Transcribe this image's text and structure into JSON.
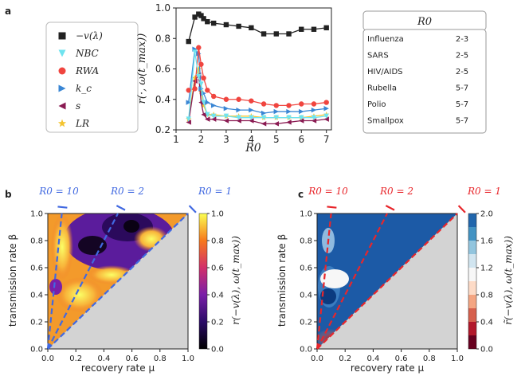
{
  "panels": {
    "a": {
      "label": "a"
    },
    "b": {
      "label": "b"
    },
    "c": {
      "label": "c"
    }
  },
  "legend": {
    "items": [
      {
        "name": "−v(λ)",
        "marker": "square",
        "color": "#222222"
      },
      {
        "name": "NBC",
        "marker": "triangle-down",
        "color": "#6fe3ef"
      },
      {
        "name": "RWA",
        "marker": "circle",
        "color": "#f0453f"
      },
      {
        "name": "k_c",
        "marker": "triangle-right",
        "color": "#3a86d4"
      },
      {
        "name": "s",
        "marker": "triangle-left",
        "color": "#8a1a52"
      },
      {
        "name": "LR",
        "marker": "star",
        "color": "#f4c430"
      }
    ]
  },
  "r0_table": {
    "header": "R0",
    "rows": [
      {
        "disease": "Influenza",
        "range": "2-3"
      },
      {
        "disease": "SARS",
        "range": "2-5"
      },
      {
        "disease": "HIV/AIDS",
        "range": "2-5"
      },
      {
        "disease": "Rubella",
        "range": "5-7"
      },
      {
        "disease": "Polio",
        "range": "5-7"
      },
      {
        "disease": "Smallpox",
        "range": "5-7"
      }
    ]
  },
  "chart_data": [
    {
      "type": "line",
      "title": "",
      "xlabel": "R0",
      "ylabel": "r(·, ω(t_max))",
      "xlim": [
        1,
        7.2
      ],
      "ylim": [
        0.2,
        1.0
      ],
      "xticks": [
        "1",
        "2",
        "3",
        "4",
        "5",
        "6",
        "7"
      ],
      "yticks": [
        "0.2",
        "0.4",
        "0.6",
        "0.8",
        "1.0"
      ],
      "x": [
        1.5,
        1.75,
        1.9,
        2.0,
        2.1,
        2.25,
        2.5,
        3.0,
        3.5,
        4.0,
        4.5,
        5.0,
        5.5,
        6.0,
        6.5,
        7.0
      ],
      "series": [
        {
          "name": "−v(λ)",
          "color": "#222222",
          "marker": "square",
          "values": [
            0.78,
            0.94,
            0.96,
            0.95,
            0.93,
            0.91,
            0.9,
            0.89,
            0.88,
            0.87,
            0.83,
            0.83,
            0.83,
            0.86,
            0.86,
            0.87
          ]
        },
        {
          "name": "NBC",
          "color": "#6fe3ef",
          "marker": "triangle-down",
          "values": [
            0.27,
            0.71,
            0.55,
            0.5,
            0.38,
            0.3,
            0.29,
            0.29,
            0.28,
            0.28,
            0.28,
            0.28,
            0.28,
            0.28,
            0.28,
            0.29
          ]
        },
        {
          "name": "RWA",
          "color": "#f0453f",
          "marker": "circle",
          "values": [
            0.46,
            0.47,
            0.74,
            0.63,
            0.54,
            0.46,
            0.42,
            0.4,
            0.4,
            0.39,
            0.37,
            0.36,
            0.36,
            0.37,
            0.37,
            0.38
          ]
        },
        {
          "name": "k_c",
          "color": "#3a86d4",
          "marker": "triangle-right",
          "values": [
            0.38,
            0.73,
            0.7,
            0.47,
            0.44,
            0.38,
            0.36,
            0.34,
            0.33,
            0.33,
            0.31,
            0.32,
            0.32,
            0.32,
            0.33,
            0.34
          ]
        },
        {
          "name": "s",
          "color": "#8a1a52",
          "marker": "triangle-left",
          "values": [
            0.25,
            0.52,
            0.56,
            0.38,
            0.3,
            0.27,
            0.27,
            0.26,
            0.26,
            0.26,
            0.24,
            0.24,
            0.25,
            0.26,
            0.26,
            0.27
          ]
        },
        {
          "name": "LR",
          "color": "#f4c430",
          "marker": "star",
          "values": [
            0.27,
            0.54,
            0.6,
            0.45,
            0.36,
            0.3,
            0.3,
            0.29,
            0.29,
            0.29,
            0.28,
            0.28,
            0.28,
            0.28,
            0.29,
            0.3
          ]
        }
      ]
    },
    {
      "type": "heatmap",
      "title": "",
      "xlabel": "recovery rate μ",
      "ylabel": "transmission rate β",
      "xlim": [
        0,
        1
      ],
      "ylim": [
        0,
        1
      ],
      "xticks": [
        "0.0",
        "0.2",
        "0.4",
        "0.6",
        "0.8",
        "1.0"
      ],
      "yticks": [
        "0.0",
        "0.2",
        "0.4",
        "0.6",
        "0.8",
        "1.0"
      ],
      "colorbar_label": "r(−v(λ), ω(t_max))",
      "colorbar_ticks": [
        "0.0",
        "0.2",
        "0.4",
        "0.6",
        "0.8",
        "1.0"
      ],
      "reference_lines": [
        {
          "label": "R0 = 10",
          "slope": 10
        },
        {
          "label": "R0 = 2",
          "slope": 2
        },
        {
          "label": "R0 = 1",
          "slope": 1
        }
      ],
      "line_color": "#4169e1"
    },
    {
      "type": "heatmap",
      "title": "",
      "xlabel": "recovery rate μ",
      "ylabel": "transmission rate β",
      "xlim": [
        0,
        1
      ],
      "ylim": [
        0,
        1
      ],
      "xticks": [
        "0.0",
        "0.2",
        "0.4",
        "0.6",
        "0.8",
        "1.0"
      ],
      "yticks": [
        "0.0",
        "0.2",
        "0.4",
        "0.6",
        "0.8",
        "1.0"
      ],
      "colorbar_label": "r̃(−v(λ), ω(t_max))",
      "colorbar_ticks": [
        "0.0",
        "0.4",
        "0.8",
        "1.2",
        "1.6",
        "2.0"
      ],
      "reference_lines": [
        {
          "label": "R0 = 10",
          "slope": 10
        },
        {
          "label": "R0 = 2",
          "slope": 2
        },
        {
          "label": "R0 = 1",
          "slope": 1
        }
      ],
      "line_color": "#e8262b"
    }
  ]
}
